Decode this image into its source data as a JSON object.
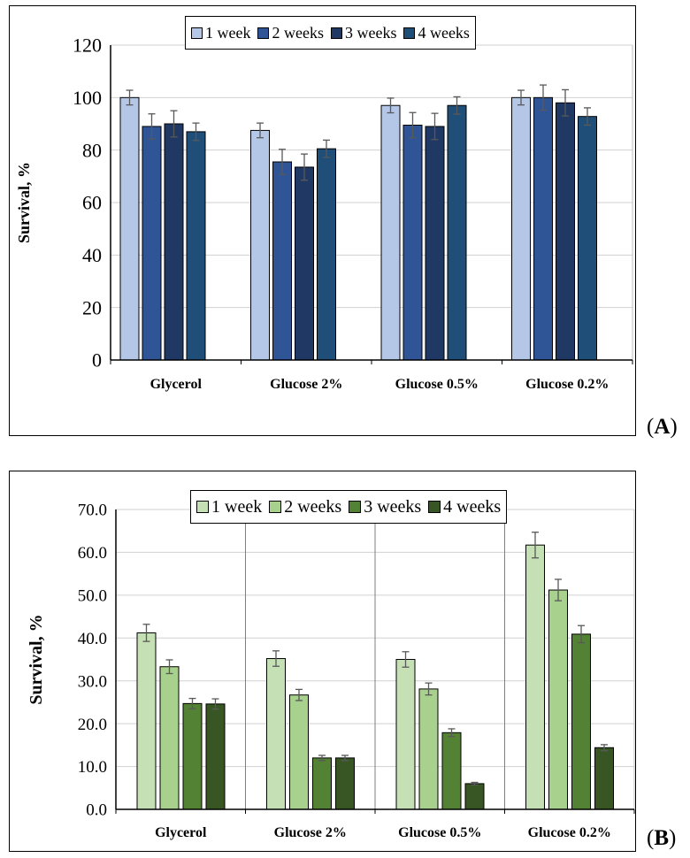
{
  "chart_data": [
    {
      "type": "bar",
      "panel_label": "A",
      "categories": [
        "Glycerol",
        "Glucose 2%",
        "Glucose 0.5%",
        "Glucose 0.2%"
      ],
      "ylabel": "Survival, %",
      "xlabel": "",
      "ylim": [
        0,
        120
      ],
      "yticks": [
        "0",
        "20",
        "40",
        "60",
        "80",
        "100",
        "120"
      ],
      "grid": true,
      "legend_position": "top-center",
      "series": [
        {
          "name": "1 week",
          "color": "#b4c7e7",
          "values": [
            100,
            87.5,
            97,
            100
          ],
          "errors": [
            2.8,
            2.8,
            2.8,
            2.8
          ]
        },
        {
          "name": "2 weeks",
          "color": "#2f5597",
          "values": [
            89,
            75.5,
            89.5,
            100
          ],
          "errors": [
            4.8,
            4.8,
            4.8,
            4.8
          ]
        },
        {
          "name": "3 weeks",
          "color": "#203864",
          "values": [
            90,
            73.5,
            89,
            98
          ],
          "errors": [
            5,
            5,
            5,
            5
          ]
        },
        {
          "name": "4 weeks",
          "color": "#1f4e79",
          "values": [
            87,
            80.5,
            97,
            92.8
          ],
          "errors": [
            3.3,
            3.3,
            3.3,
            3.3
          ]
        }
      ]
    },
    {
      "type": "bar",
      "panel_label": "B",
      "categories": [
        "Glycerol",
        "Glucose 2%",
        "Glucose 0.5%",
        "Glucose 0.2%"
      ],
      "ylabel": "Survival, %",
      "xlabel": "",
      "ylim": [
        0,
        70
      ],
      "yticks": [
        "0.0",
        "10.0",
        "20.0",
        "30.0",
        "40.0",
        "50.0",
        "60.0",
        "70.0"
      ],
      "grid": true,
      "group_dividers": true,
      "legend_position": "top-center",
      "series": [
        {
          "name": "1 week",
          "color": "#c5e0b4",
          "values": [
            41.2,
            35.2,
            35,
            61.7
          ],
          "errors": [
            2,
            1.8,
            1.8,
            3
          ]
        },
        {
          "name": "2 weeks",
          "color": "#a9d18e",
          "values": [
            33.3,
            26.7,
            28.1,
            51.2
          ],
          "errors": [
            1.6,
            1.3,
            1.4,
            2.5
          ]
        },
        {
          "name": "3 weeks",
          "color": "#548235",
          "values": [
            24.7,
            12,
            17.9,
            40.9
          ],
          "errors": [
            1.2,
            0.6,
            0.9,
            2
          ]
        },
        {
          "name": "4 weeks",
          "color": "#375623",
          "values": [
            24.6,
            12,
            6,
            14.4
          ],
          "errors": [
            1.2,
            0.6,
            0.3,
            0.7
          ]
        }
      ]
    }
  ]
}
